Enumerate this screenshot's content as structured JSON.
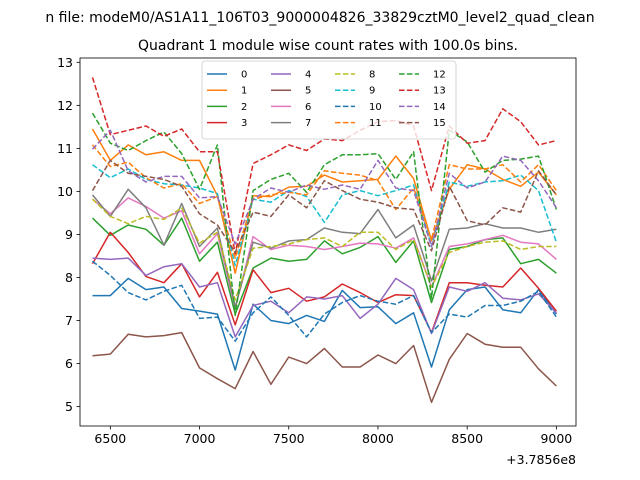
{
  "suptitle": "n file: modeM0/AS1A11_106T03_9000004826_33829cztM0_level2_quad_clean",
  "chart_data": {
    "type": "line",
    "title": "Quadrant 1 module wise count rates with 100.0s bins.",
    "xlabel": "",
    "ylabel": "",
    "x_offset_label": "+3.7856e8",
    "xlim": [
      6330,
      9110
    ],
    "ylim": [
      4.55,
      13.1
    ],
    "x_ticks": [
      6500,
      7000,
      7500,
      8000,
      8500,
      9000
    ],
    "y_ticks": [
      5,
      6,
      7,
      8,
      9,
      10,
      11,
      12,
      13
    ],
    "x": [
      6400,
      6500,
      6600,
      6700,
      6800,
      6900,
      7000,
      7100,
      7200,
      7300,
      7400,
      7500,
      7600,
      7700,
      7800,
      7900,
      8000,
      8100,
      8200,
      8300,
      8400,
      8500,
      8600,
      8700,
      8800,
      8900,
      9000
    ],
    "legend": {
      "location": "upper center",
      "columns": 4
    },
    "series": [
      {
        "name": "0",
        "color": "#1f77b4",
        "dash": "solid",
        "values": [
          7.58,
          7.58,
          7.98,
          7.72,
          7.78,
          7.28,
          7.22,
          7.15,
          5.85,
          7.38,
          7.0,
          6.93,
          7.12,
          6.98,
          7.7,
          7.3,
          7.32,
          6.93,
          7.18,
          5.92,
          7.25,
          7.72,
          7.78,
          7.25,
          7.18,
          7.72,
          7.15
        ]
      },
      {
        "name": "1",
        "color": "#ff7f0e",
        "dash": "solid",
        "values": [
          11.45,
          10.72,
          11.08,
          10.85,
          10.92,
          10.72,
          10.72,
          9.9,
          8.1,
          9.9,
          9.88,
          10.1,
          10.12,
          10.38,
          10.22,
          10.25,
          10.28,
          10.82,
          10.3,
          8.85,
          10.05,
          10.62,
          10.52,
          10.28,
          10.12,
          10.45,
          9.92
        ]
      },
      {
        "name": "2",
        "color": "#2ca02c",
        "dash": "solid",
        "values": [
          9.38,
          8.98,
          9.22,
          9.12,
          8.75,
          9.38,
          8.38,
          8.82,
          7.15,
          8.22,
          8.45,
          8.38,
          8.42,
          8.85,
          8.55,
          8.7,
          8.95,
          8.35,
          8.85,
          7.42,
          8.65,
          8.72,
          8.88,
          8.92,
          8.32,
          8.42,
          8.1
        ]
      },
      {
        "name": "3",
        "color": "#d62728",
        "dash": "solid",
        "values": [
          8.32,
          9.05,
          8.58,
          8.02,
          7.88,
          8.32,
          7.55,
          8.12,
          6.9,
          8.18,
          7.65,
          7.75,
          7.45,
          7.55,
          7.85,
          7.65,
          7.42,
          7.6,
          7.58,
          6.72,
          7.88,
          7.88,
          7.82,
          7.78,
          8.22,
          7.75,
          7.22
        ]
      },
      {
        "name": "4",
        "color": "#9467bd",
        "dash": "solid",
        "values": [
          8.45,
          8.42,
          8.45,
          8.05,
          8.25,
          8.32,
          7.78,
          7.88,
          6.62,
          7.35,
          7.45,
          7.18,
          7.55,
          7.5,
          7.58,
          7.05,
          7.38,
          7.98,
          7.72,
          6.7,
          7.78,
          7.68,
          7.88,
          7.52,
          7.48,
          7.62,
          7.18
        ]
      },
      {
        "name": "5",
        "color": "#8c564b",
        "dash": "solid",
        "values": [
          6.18,
          6.22,
          6.68,
          6.62,
          6.65,
          6.72,
          5.9,
          5.65,
          5.42,
          6.28,
          5.52,
          6.15,
          6.0,
          6.35,
          5.92,
          5.92,
          6.2,
          6.0,
          6.42,
          5.1,
          6.1,
          6.7,
          6.45,
          6.38,
          6.38,
          5.88,
          5.48
        ]
      },
      {
        "name": "6",
        "color": "#e377c2",
        "dash": "solid",
        "values": [
          9.82,
          9.48,
          9.85,
          9.65,
          9.38,
          9.55,
          8.55,
          9.02,
          7.28,
          8.95,
          8.65,
          8.75,
          8.72,
          8.65,
          8.72,
          8.8,
          8.78,
          8.68,
          8.92,
          7.78,
          8.72,
          8.78,
          8.88,
          8.98,
          8.82,
          8.78,
          8.42
        ]
      },
      {
        "name": "7",
        "color": "#7f7f7f",
        "dash": "solid",
        "values": [
          9.92,
          9.42,
          10.05,
          9.62,
          8.75,
          9.72,
          8.72,
          9.15,
          7.32,
          8.82,
          8.68,
          8.85,
          8.88,
          9.15,
          9.05,
          9.02,
          9.58,
          8.92,
          9.22,
          7.92,
          9.12,
          9.15,
          9.25,
          9.15,
          9.15,
          9.05,
          9.12
        ]
      },
      {
        "name": "8",
        "color": "#bcbd22",
        "dash": "dash",
        "values": [
          9.82,
          9.42,
          9.25,
          9.42,
          9.35,
          9.62,
          8.8,
          9.05,
          7.48,
          8.68,
          8.72,
          8.78,
          8.88,
          8.92,
          8.72,
          9.05,
          9.05,
          8.65,
          8.88,
          7.78,
          8.58,
          8.72,
          8.82,
          8.85,
          8.65,
          8.72,
          8.72
        ]
      },
      {
        "name": "9",
        "color": "#17becf",
        "dash": "dash",
        "values": [
          10.62,
          10.32,
          10.52,
          10.28,
          10.18,
          10.15,
          10.08,
          9.95,
          8.28,
          9.82,
          9.75,
          10.02,
          9.88,
          9.28,
          9.92,
          10.02,
          9.9,
          10.02,
          10.15,
          8.72,
          10.22,
          10.12,
          10.22,
          10.25,
          10.38,
          10.02,
          8.82
        ]
      },
      {
        "name": "10",
        "color": "#1f77b4",
        "dash": "dash",
        "values": [
          8.38,
          8.05,
          7.65,
          7.48,
          7.68,
          7.82,
          7.05,
          7.08,
          6.52,
          7.18,
          7.55,
          7.12,
          6.62,
          7.15,
          7.42,
          7.58,
          7.45,
          7.38,
          7.58,
          6.72,
          7.15,
          7.08,
          7.35,
          7.35,
          7.45,
          7.68,
          7.08
        ]
      },
      {
        "name": "11",
        "color": "#ff7f0e",
        "dash": "dash",
        "values": [
          11.08,
          10.58,
          10.68,
          10.32,
          10.08,
          10.18,
          9.72,
          9.88,
          8.45,
          9.82,
          9.92,
          9.98,
          9.92,
          10.48,
          10.42,
          10.38,
          10.25,
          9.58,
          10.08,
          8.88,
          10.62,
          10.52,
          10.52,
          10.62,
          10.22,
          10.62,
          10.02
        ]
      },
      {
        "name": "12",
        "color": "#2ca02c",
        "dash": "dash",
        "values": [
          11.82,
          11.12,
          10.95,
          11.18,
          11.38,
          10.88,
          10.05,
          11.08,
          7.12,
          10.02,
          10.28,
          10.42,
          9.98,
          10.62,
          10.85,
          10.85,
          10.88,
          10.28,
          10.92,
          7.52,
          11.42,
          11.15,
          10.45,
          10.72,
          10.75,
          10.82,
          9.58
        ]
      },
      {
        "name": "13",
        "color": "#d62728",
        "dash": "dash",
        "values": [
          12.65,
          11.32,
          11.42,
          11.52,
          11.28,
          11.45,
          10.92,
          10.92,
          8.55,
          10.65,
          10.85,
          11.08,
          10.95,
          11.22,
          11.18,
          11.42,
          11.62,
          11.65,
          11.52,
          10.02,
          11.52,
          11.12,
          11.18,
          11.92,
          11.62,
          11.08,
          11.18
        ]
      },
      {
        "name": "14",
        "color": "#9467bd",
        "dash": "dash",
        "values": [
          10.98,
          11.42,
          10.48,
          10.22,
          10.35,
          10.35,
          9.85,
          9.88,
          8.78,
          9.82,
          10.08,
          9.98,
          10.15,
          10.05,
          10.15,
          10.05,
          10.72,
          10.08,
          10.02,
          8.72,
          10.42,
          10.08,
          10.22,
          10.82,
          10.72,
          10.25,
          9.62
        ]
      },
      {
        "name": "15",
        "color": "#8c564b",
        "dash": "dash",
        "values": [
          10.02,
          10.72,
          10.42,
          10.35,
          10.28,
          10.12,
          9.48,
          9.22,
          8.58,
          9.52,
          9.42,
          9.92,
          9.62,
          10.25,
          10.02,
          9.82,
          9.75,
          9.62,
          9.58,
          8.62,
          10.12,
          9.32,
          9.22,
          9.62,
          9.52,
          10.48,
          9.92
        ]
      }
    ]
  }
}
